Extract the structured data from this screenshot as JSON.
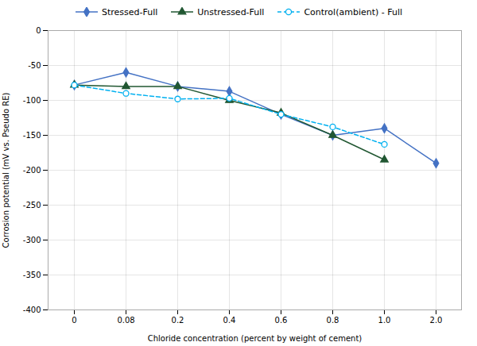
{
  "chart_data": {
    "type": "line",
    "xlabel": "Chloride concentration (percent by weight of cement)",
    "ylabel": "Corrosion potential (mV vs. Pseudo RE)",
    "categories": [
      "0",
      "0.08",
      "0.2",
      "0.4",
      "0.6",
      "0.8",
      "1.0",
      "2.0"
    ],
    "series": [
      {
        "name": "Stressed-Full",
        "color": "#4472C4",
        "marker": "diamond",
        "line_style": "solid",
        "values": [
          -78,
          -60,
          -80,
          -87,
          -120,
          -150,
          -140,
          -190
        ]
      },
      {
        "name": "Unstressed-Full",
        "color": "#215732",
        "marker": "triangle",
        "line_style": "solid",
        "values": [
          -78,
          -80,
          -80,
          -100,
          -118,
          -150,
          -185,
          null
        ]
      },
      {
        "name": "Control(ambient) - Full",
        "color": "#00B0F0",
        "marker": "open_circle",
        "line_style": "dashed",
        "values": [
          -78,
          -90,
          -98,
          -97,
          -120,
          -138,
          -163,
          null
        ]
      }
    ],
    "ylim": [
      -400,
      0
    ],
    "yticks": [
      0,
      -50,
      -100,
      -150,
      -200,
      -250,
      -300,
      -350,
      -400
    ],
    "grid": true,
    "legend": "top"
  }
}
